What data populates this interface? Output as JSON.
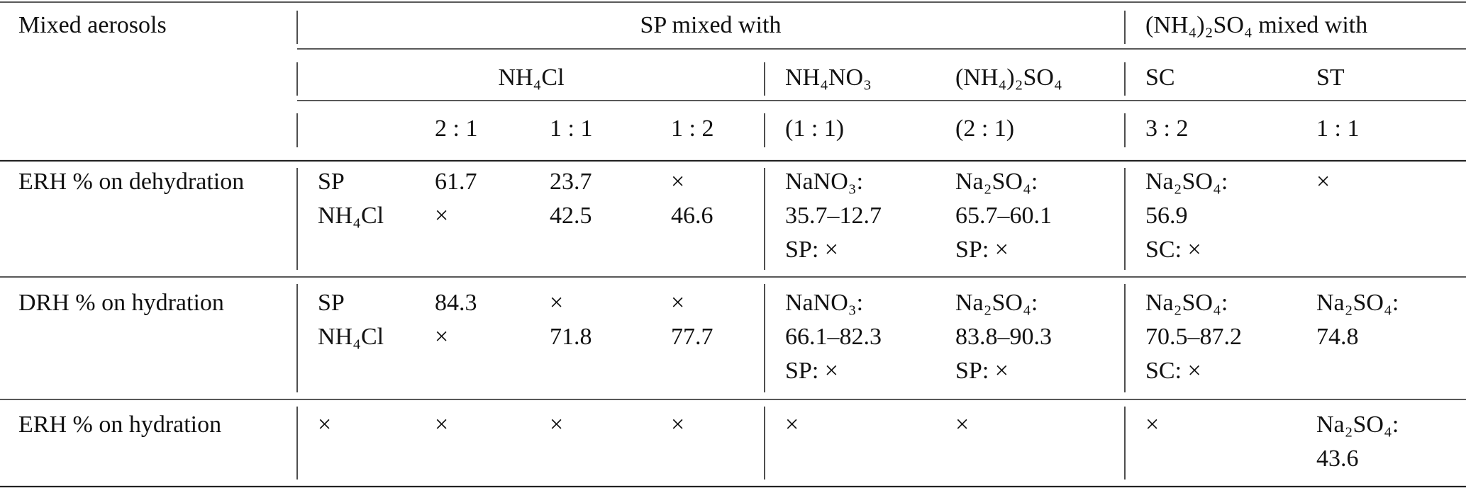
{
  "table": {
    "header": [
      [
        "Mixed aerosols",
        "SP mixed with",
        "(NH₄)₂SO₄ mixed with"
      ],
      [
        "NH₄Cl",
        "NH₄NO₃",
        "(NH₄)₂SO₄",
        "SC",
        "ST"
      ],
      [
        "2 : 1",
        "1 : 1",
        "1 : 2",
        "(1 : 1)",
        "(2 : 1)",
        "3 : 2",
        "1 : 1"
      ]
    ],
    "rows": [
      [
        "ERH % on dehydration",
        [
          "SP",
          "NH₄Cl"
        ],
        [
          "61.7",
          "×"
        ],
        [
          "23.7",
          "42.5"
        ],
        [
          "×",
          "46.6"
        ],
        [
          "NaNO₃:",
          "35.7–12.7",
          "SP: ×"
        ],
        [
          "Na₂SO₄:",
          "65.7–60.1",
          "SP: ×"
        ],
        [
          "Na₂SO₄:",
          "56.9",
          "SC: ×"
        ],
        [
          "×"
        ]
      ],
      [
        "DRH % on hydration",
        [
          "SP",
          "NH₄Cl"
        ],
        [
          "84.3",
          "×"
        ],
        [
          "×",
          "71.8"
        ],
        [
          "×",
          "77.7"
        ],
        [
          "NaNO₃:",
          "66.1–82.3",
          "SP: ×"
        ],
        [
          "Na₂SO₄:",
          "83.8–90.3",
          "SP: ×"
        ],
        [
          "Na₂SO₄:",
          "70.5–87.2",
          "SC: ×"
        ],
        [
          "Na₂SO₄:",
          "74.8"
        ]
      ],
      [
        "ERH % on hydration",
        [
          "×"
        ],
        [
          "×"
        ],
        [
          "×"
        ],
        [
          "×"
        ],
        [
          "×"
        ],
        [
          "×"
        ],
        [
          "×"
        ],
        [
          "Na₂SO₄:",
          "43.6"
        ]
      ]
    ]
  }
}
